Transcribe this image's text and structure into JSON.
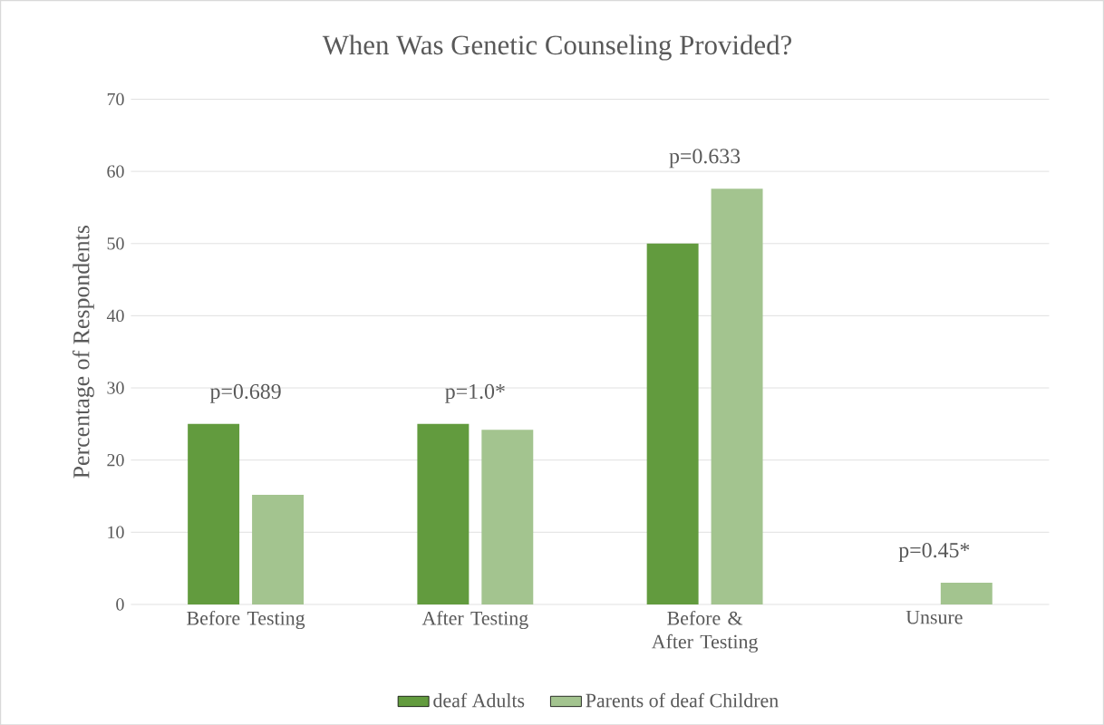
{
  "chart_data": {
    "type": "bar",
    "title": "When Was Genetic Counseling Provided?",
    "ylabel": "Percentage of Respondents",
    "categories": [
      "Before Testing",
      "After Testing",
      "Before & After Testing",
      "Unsure"
    ],
    "series": [
      {
        "name": "deaf Adults",
        "color": "#629b3e",
        "values": [
          25,
          25,
          50,
          0
        ]
      },
      {
        "name": "Parents of deaf Children",
        "color": "#a3c48f",
        "values": [
          15.2,
          24.2,
          57.6,
          3.0
        ]
      }
    ],
    "ylim": [
      0,
      70
    ],
    "yticks": [
      0,
      10,
      20,
      30,
      40,
      50,
      60,
      70
    ],
    "grid": "y",
    "legend": "bottom",
    "annotations": [
      "p=0.689",
      "p=1.0*",
      "p=0.633",
      "p=0.45*"
    ]
  }
}
